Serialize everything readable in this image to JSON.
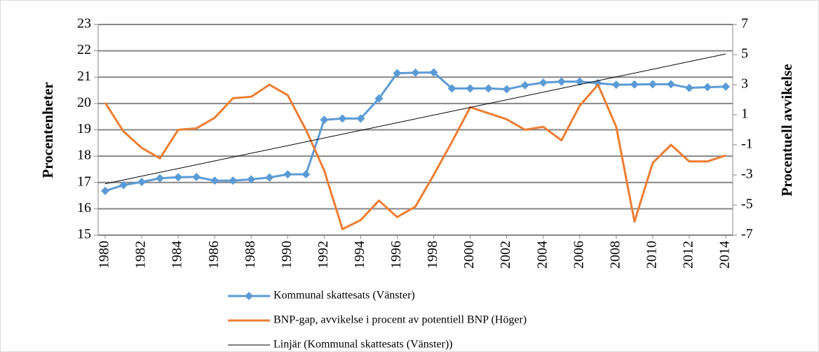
{
  "chart_data": {
    "type": "line",
    "x": [
      1980,
      1981,
      1982,
      1983,
      1984,
      1985,
      1986,
      1987,
      1988,
      1989,
      1990,
      1991,
      1992,
      1993,
      1994,
      1995,
      1996,
      1997,
      1998,
      1999,
      2000,
      2001,
      2002,
      2003,
      2004,
      2005,
      2006,
      2007,
      2008,
      2009,
      2010,
      2011,
      2012,
      2013,
      2014
    ],
    "xlim": [
      1980,
      2014
    ],
    "xticks": [
      1980,
      1982,
      1984,
      1986,
      1988,
      1990,
      1992,
      1994,
      1996,
      1998,
      2000,
      2002,
      2004,
      2006,
      2008,
      2010,
      2012,
      2014
    ],
    "ylim": [
      15,
      23
    ],
    "yticks": [
      15,
      16,
      17,
      18,
      19,
      20,
      21,
      22,
      23
    ],
    "y2lim": [
      -7,
      7
    ],
    "y2ticks": [
      -7,
      -5,
      -3,
      -1,
      1,
      3,
      5,
      7
    ],
    "ylabel": "Procentenheter",
    "y2label": "Procentuell avvikelse",
    "grid": true,
    "legend": "bottom",
    "series": [
      {
        "name": "Kommunal skattesats (Vänster)",
        "color": "#5b9bd5",
        "marker": "diamond",
        "values": [
          16.68,
          16.9,
          17.02,
          17.16,
          17.2,
          17.21,
          17.07,
          17.07,
          17.12,
          17.19,
          17.31,
          17.31,
          19.38,
          19.43,
          19.43,
          20.19,
          21.15,
          21.17,
          21.18,
          20.57,
          20.57,
          20.57,
          20.54,
          20.69,
          20.79,
          20.83,
          20.83,
          20.77,
          20.71,
          20.72,
          20.73,
          20.73,
          20.59,
          20.62,
          20.64
        ]
      },
      {
        "name": "BNP-gap, avvikelse i procent av potentiell BNP (Höger)",
        "color": "#ed7d31",
        "axis": "y2",
        "values": [
          1.8,
          -0.1,
          -1.2,
          -1.9,
          0.0,
          0.1,
          0.8,
          2.1,
          2.2,
          3.0,
          2.3,
          0.0,
          -2.7,
          -6.6,
          -6.0,
          -4.7,
          -5.8,
          -5.1,
          -3.0,
          -0.8,
          1.5,
          1.1,
          0.7,
          0.0,
          0.2,
          -0.7,
          1.6,
          3.0,
          0.2,
          -6.1,
          -2.2,
          -1.0,
          -2.1,
          -2.1,
          -1.7
        ]
      },
      {
        "name": "Linjär (Kommunal skattesats (Vänster))",
        "color": "#000000",
        "x": [
          1980,
          2014
        ],
        "values": [
          16.95,
          21.88
        ]
      }
    ]
  }
}
